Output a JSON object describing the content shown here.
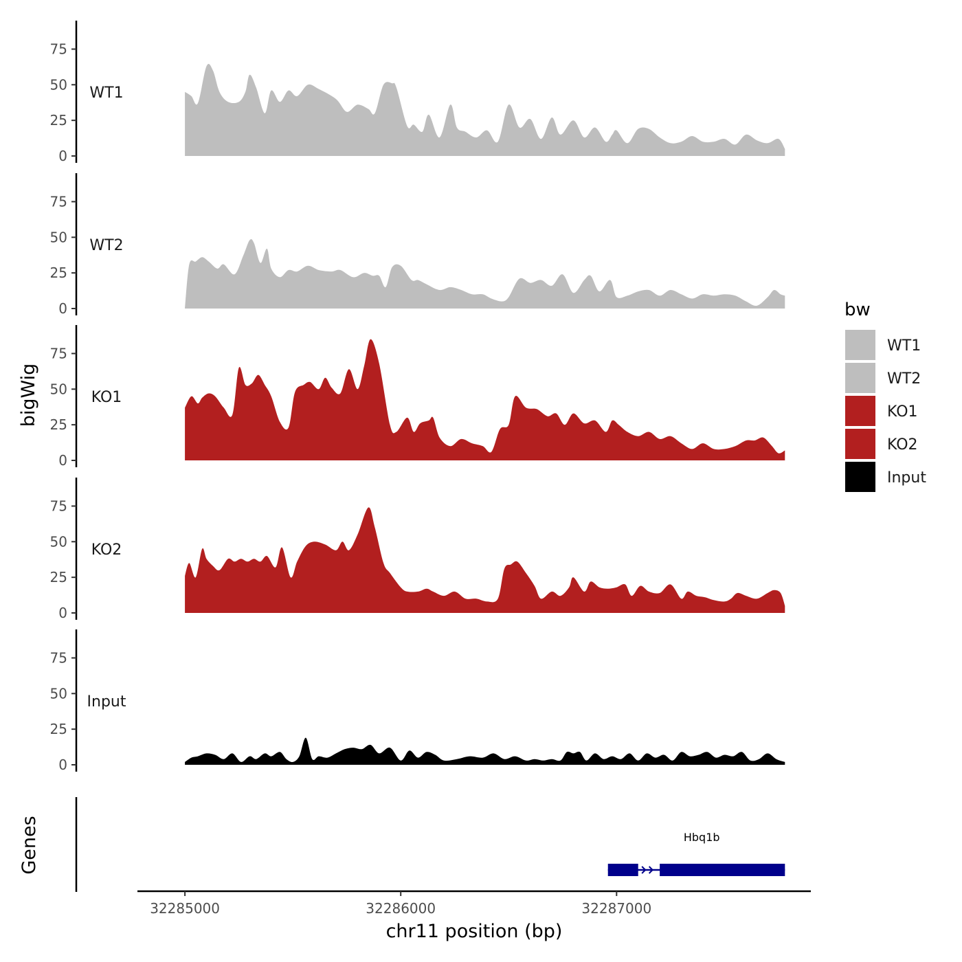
{
  "chart_data": {
    "type": "area",
    "x_label": "chr11 position (bp)",
    "y_label": "bigWig",
    "genes_track_label": "Genes",
    "x_range": [
      32284780,
      32287900
    ],
    "region": [
      32285000,
      32287780
    ],
    "x_ticks": [
      32285000,
      32286000,
      32287000
    ],
    "x_tick_labels": [
      "32285000",
      "32286000",
      "32287000"
    ],
    "y_range": [
      0,
      95
    ],
    "y_ticks": [
      0,
      25,
      50,
      75
    ],
    "y_tick_labels": [
      "0",
      "25",
      "50",
      "75"
    ],
    "legend": {
      "title": "bw",
      "entries": [
        {
          "label": "WT1",
          "color": "#bebebe"
        },
        {
          "label": "WT2",
          "color": "#bebebe"
        },
        {
          "label": "KO1",
          "color": "#b21f1f"
        },
        {
          "label": "KO2",
          "color": "#b21f1f"
        },
        {
          "label": "Input",
          "color": "#000000"
        }
      ]
    },
    "series": [
      {
        "name": "WT1",
        "color": "#bebebe",
        "x": [
          32285000,
          32285030,
          32285060,
          32285100,
          32285130,
          32285160,
          32285200,
          32285250,
          32285280,
          32285300,
          32285330,
          32285370,
          32285400,
          32285440,
          32285480,
          32285520,
          32285570,
          32285620,
          32285700,
          32285750,
          32285800,
          32285850,
          32285880,
          32285920,
          32285960,
          32285980,
          32286030,
          32286060,
          32286100,
          32286130,
          32286180,
          32286230,
          32286260,
          32286300,
          32286350,
          32286400,
          32286450,
          32286500,
          32286550,
          32286600,
          32286650,
          32286700,
          32286740,
          32286800,
          32286850,
          32286900,
          32286950,
          32286980,
          32287000,
          32287050,
          32287100,
          32287150,
          32287200,
          32287250,
          32287300,
          32287350,
          32287400,
          32287450,
          32287500,
          32287550,
          32287600,
          32287650,
          32287700,
          32287750,
          32287780
        ],
        "y": [
          45,
          42,
          37,
          63,
          60,
          45,
          38,
          38,
          45,
          57,
          48,
          30,
          46,
          38,
          46,
          42,
          50,
          47,
          40,
          31,
          36,
          33,
          30,
          50,
          51,
          48,
          21,
          22,
          17,
          29,
          13,
          36,
          20,
          17,
          13,
          18,
          10,
          36,
          20,
          26,
          12,
          27,
          15,
          25,
          13,
          20,
          10,
          15,
          18,
          9,
          19,
          19,
          13,
          9,
          10,
          14,
          10,
          10,
          12,
          8,
          15,
          11,
          9,
          12,
          5
        ]
      },
      {
        "name": "WT2",
        "color": "#bebebe",
        "x": [
          32285000,
          32285020,
          32285050,
          32285080,
          32285110,
          32285150,
          32285180,
          32285230,
          32285270,
          32285300,
          32285320,
          32285350,
          32285380,
          32285400,
          32285440,
          32285480,
          32285520,
          32285570,
          32285620,
          32285680,
          32285720,
          32285780,
          32285830,
          32285870,
          32285900,
          32285930,
          32285960,
          32286000,
          32286050,
          32286080,
          32286120,
          32286180,
          32286230,
          32286280,
          32286330,
          32286380,
          32286420,
          32286470,
          32286500,
          32286550,
          32286600,
          32286650,
          32286700,
          32286750,
          32286800,
          32286850,
          32286880,
          32286920,
          32286970,
          32287000,
          32287050,
          32287100,
          32287150,
          32287200,
          32287250,
          32287300,
          32287350,
          32287400,
          32287450,
          32287500,
          32287550,
          32287600,
          32287650,
          32287700,
          32287730,
          32287760,
          32287780
        ],
        "y": [
          0,
          31,
          33,
          36,
          33,
          28,
          31,
          24,
          37,
          48,
          46,
          32,
          42,
          28,
          22,
          27,
          26,
          30,
          27,
          26,
          27,
          22,
          25,
          23,
          23,
          15,
          29,
          30,
          20,
          20,
          17,
          13,
          15,
          13,
          10,
          10,
          7,
          5,
          8,
          21,
          18,
          20,
          16,
          24,
          11,
          20,
          23,
          12,
          20,
          8,
          9,
          12,
          13,
          9,
          13,
          10,
          7,
          10,
          9,
          10,
          9,
          5,
          2,
          8,
          13,
          10,
          9
        ]
      },
      {
        "name": "KO1",
        "color": "#b21f1f",
        "x": [
          32285000,
          32285030,
          32285060,
          32285080,
          32285110,
          32285140,
          32285180,
          32285220,
          32285250,
          32285280,
          32285310,
          32285340,
          32285370,
          32285400,
          32285440,
          32285480,
          32285510,
          32285550,
          32285580,
          32285620,
          32285650,
          32285680,
          32285720,
          32285760,
          32285800,
          32285830,
          32285860,
          32285900,
          32285950,
          32285980,
          32286030,
          32286060,
          32286090,
          32286130,
          32286150,
          32286180,
          32286230,
          32286280,
          32286330,
          32286380,
          32286420,
          32286460,
          32286500,
          32286530,
          32286580,
          32286630,
          32286680,
          32286720,
          32286760,
          32286800,
          32286850,
          32286900,
          32286950,
          32286980,
          32287010,
          32287050,
          32287100,
          32287150,
          32287200,
          32287250,
          32287300,
          32287350,
          32287400,
          32287450,
          32287500,
          32287550,
          32287600,
          32287640,
          32287680,
          32287720,
          32287750,
          32287780
        ],
        "y": [
          37,
          45,
          40,
          44,
          47,
          45,
          37,
          32,
          65,
          53,
          54,
          60,
          53,
          45,
          27,
          23,
          48,
          53,
          55,
          50,
          58,
          51,
          47,
          64,
          50,
          66,
          85,
          68,
          25,
          20,
          30,
          20,
          26,
          28,
          30,
          16,
          10,
          15,
          12,
          10,
          6,
          22,
          25,
          45,
          37,
          36,
          31,
          33,
          25,
          33,
          26,
          28,
          20,
          28,
          25,
          20,
          17,
          20,
          15,
          17,
          12,
          8,
          12,
          8,
          8,
          10,
          14,
          14,
          16,
          10,
          5,
          7
        ]
      },
      {
        "name": "KO2",
        "color": "#b21f1f",
        "x": [
          32285000,
          32285020,
          32285050,
          32285080,
          32285100,
          32285130,
          32285160,
          32285200,
          32285230,
          32285260,
          32285290,
          32285320,
          32285350,
          32285380,
          32285420,
          32285450,
          32285490,
          32285520,
          32285560,
          32285600,
          32285650,
          32285700,
          32285730,
          32285760,
          32285800,
          32285850,
          32285880,
          32285920,
          32285950,
          32286000,
          32286030,
          32286080,
          32286120,
          32286150,
          32286200,
          32286250,
          32286300,
          32286350,
          32286400,
          32286450,
          32286480,
          32286510,
          32286540,
          32286580,
          32286620,
          32286650,
          32286700,
          32286740,
          32286780,
          32286800,
          32286850,
          32286880,
          32286920,
          32286960,
          32287000,
          32287040,
          32287070,
          32287110,
          32287150,
          32287200,
          32287250,
          32287300,
          32287330,
          32287370,
          32287410,
          32287450,
          32287500,
          32287530,
          32287560,
          32287600,
          32287650,
          32287700,
          32287730,
          32287760,
          32287780
        ],
        "y": [
          26,
          35,
          25,
          45,
          38,
          33,
          30,
          38,
          36,
          38,
          36,
          38,
          36,
          40,
          32,
          46,
          25,
          36,
          47,
          50,
          48,
          44,
          50,
          44,
          55,
          74,
          60,
          35,
          28,
          18,
          15,
          15,
          17,
          15,
          12,
          15,
          10,
          10,
          8,
          10,
          31,
          34,
          36,
          28,
          19,
          10,
          15,
          12,
          18,
          25,
          15,
          22,
          18,
          17,
          18,
          20,
          12,
          19,
          15,
          14,
          20,
          10,
          15,
          12,
          11,
          9,
          8,
          10,
          14,
          12,
          10,
          14,
          16,
          14,
          5
        ]
      },
      {
        "name": "Input",
        "color": "#000000",
        "x": [
          32285000,
          32285030,
          32285060,
          32285100,
          32285140,
          32285180,
          32285220,
          32285260,
          32285300,
          32285330,
          32285370,
          32285400,
          32285440,
          32285470,
          32285500,
          32285530,
          32285560,
          32285590,
          32285620,
          32285660,
          32285700,
          32285740,
          32285780,
          32285820,
          32285860,
          32285900,
          32285950,
          32286000,
          32286040,
          32286080,
          32286120,
          32286160,
          32286200,
          32286260,
          32286320,
          32286380,
          32286430,
          32286480,
          32286530,
          32286580,
          32286620,
          32286660,
          32286700,
          32286740,
          32286770,
          32286800,
          32286830,
          32286860,
          32286900,
          32286940,
          32286980,
          32287020,
          32287060,
          32287100,
          32287140,
          32287180,
          32287220,
          32287260,
          32287300,
          32287340,
          32287380,
          32287420,
          32287460,
          32287500,
          32287540,
          32287580,
          32287620,
          32287660,
          32287700,
          32287740,
          32287780
        ],
        "y": [
          2,
          5,
          6,
          8,
          7,
          4,
          8,
          2,
          6,
          4,
          8,
          6,
          9,
          4,
          2,
          6,
          19,
          4,
          6,
          5,
          8,
          11,
          12,
          11,
          14,
          8,
          12,
          3,
          10,
          5,
          9,
          7,
          3,
          4,
          6,
          5,
          8,
          4,
          6,
          3,
          4,
          3,
          4,
          3,
          9,
          8,
          9,
          3,
          8,
          4,
          6,
          4,
          8,
          3,
          8,
          5,
          7,
          3,
          9,
          6,
          7,
          9,
          5,
          7,
          6,
          9,
          3,
          4,
          8,
          4,
          2
        ]
      }
    ],
    "genes": [
      {
        "name": "Hbq1b",
        "strand": "+",
        "start": 32286960,
        "end": 32287780,
        "exons": [
          [
            32286960,
            32287100
          ],
          [
            32287200,
            32287780
          ]
        ]
      }
    ]
  }
}
